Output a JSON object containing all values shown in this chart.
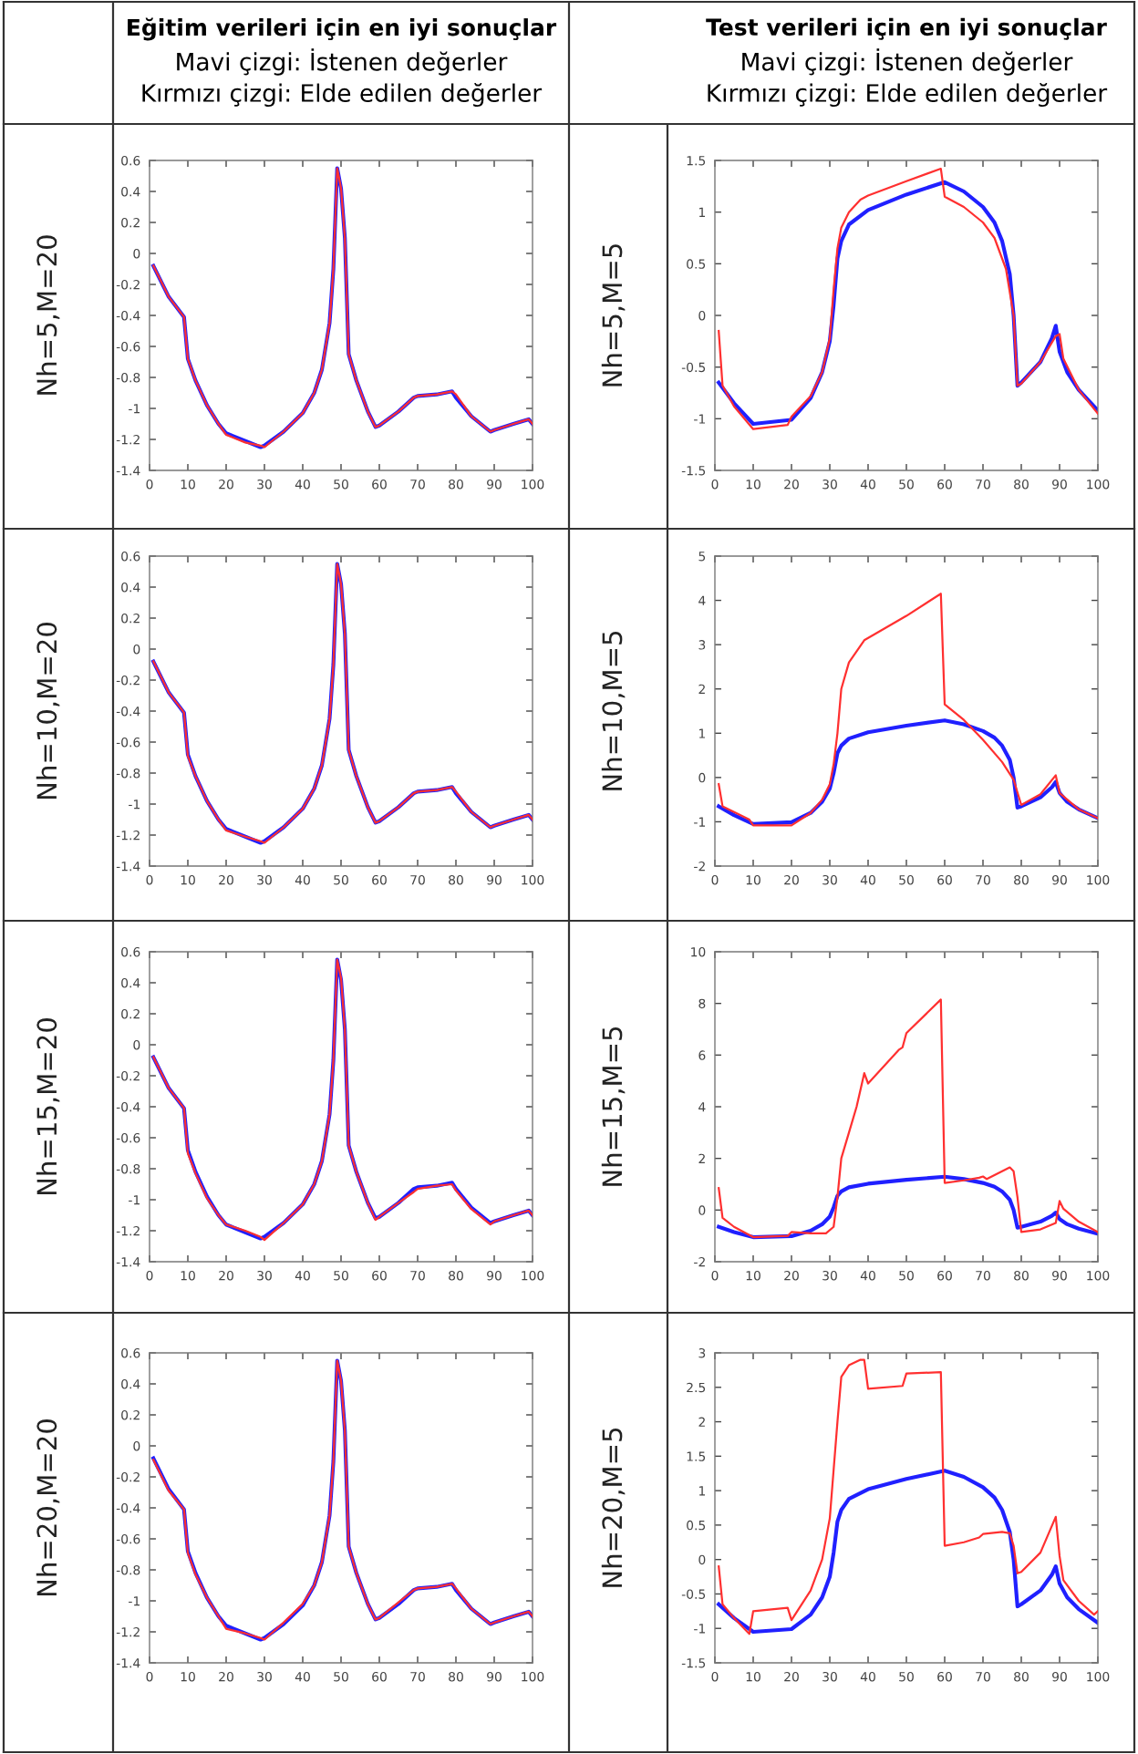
{
  "chart_data": [
    {
      "type": "line",
      "title": "Eğitim verileri için en iyi sonuçlar",
      "subtitle": "Mavi çizgi: İstenen değerler",
      "annotations": [
        "Kırmızı çizgi: Elde edilen değerler"
      ],
      "ylabel": "Nh=5,M=20",
      "xlim": [
        0,
        100
      ],
      "xticks": [
        0,
        10,
        20,
        30,
        40,
        50,
        60,
        70,
        80,
        90,
        100
      ],
      "ylim": [
        -1.4,
        0.6
      ],
      "yticks": [
        -1.4,
        -1.2,
        -1,
        -0.8,
        -0.6,
        -0.4,
        -0.2,
        0,
        0.2,
        0.4,
        0.6
      ],
      "series": [
        {
          "color": "#ff3030",
          "x": [
            1,
            5,
            9,
            10,
            12,
            15,
            18,
            20,
            25,
            29,
            30,
            35,
            40,
            43,
            45,
            47,
            48,
            49,
            50,
            51,
            52,
            54,
            57,
            59,
            60,
            65,
            69,
            70,
            75,
            79,
            80,
            84,
            89,
            90,
            95,
            99,
            100
          ],
          "values": [
            -0.08,
            -0.28,
            -0.41,
            -0.68,
            -0.82,
            -0.98,
            -1.1,
            -1.17,
            -1.22,
            -1.24,
            -1.25,
            -1.15,
            -1.03,
            -0.9,
            -0.75,
            -0.45,
            -0.1,
            0.55,
            0.42,
            0.1,
            -0.65,
            -0.82,
            -1.02,
            -1.12,
            -1.11,
            -1.02,
            -0.93,
            -0.92,
            -0.91,
            -0.89,
            -0.91,
            -1.05,
            -1.15,
            -1.14,
            -1.1,
            -1.07,
            -1.1
          ]
        },
        {
          "color": "#2020ff",
          "x": [
            1,
            5,
            9,
            10,
            12,
            15,
            18,
            20,
            25,
            29,
            30,
            35,
            40,
            43,
            45,
            47,
            48,
            49,
            50,
            51,
            52,
            54,
            57,
            59,
            60,
            65,
            69,
            70,
            75,
            79,
            80,
            84,
            89,
            90,
            95,
            99,
            100
          ],
          "values": [
            -0.08,
            -0.28,
            -0.41,
            -0.68,
            -0.82,
            -0.98,
            -1.1,
            -1.16,
            -1.21,
            -1.25,
            -1.24,
            -1.15,
            -1.03,
            -0.9,
            -0.75,
            -0.45,
            -0.1,
            0.55,
            0.42,
            0.1,
            -0.65,
            -0.82,
            -1.02,
            -1.12,
            -1.11,
            -1.02,
            -0.93,
            -0.92,
            -0.91,
            -0.89,
            -0.93,
            -1.05,
            -1.15,
            -1.14,
            -1.1,
            -1.07,
            -1.1
          ]
        }
      ]
    },
    {
      "type": "line",
      "title": "Test verileri için en iyi sonuçlar",
      "subtitle": "Mavi çizgi: İstenen değerler",
      "annotations": [
        "Kırmızı çizgi: Elde edilen değerler"
      ],
      "ylabel": "Nh=5,M=5",
      "xlim": [
        0,
        100
      ],
      "xticks": [
        0,
        10,
        20,
        30,
        40,
        50,
        60,
        70,
        80,
        90,
        100
      ],
      "ylim": [
        -1.5,
        1.5
      ],
      "yticks": [
        -1.5,
        -1,
        -0.5,
        0,
        0.5,
        1,
        1.5
      ],
      "series": [
        {
          "color": "#ff3030",
          "x": [
            1,
            2,
            5,
            10,
            19,
            20,
            25,
            28,
            30,
            31,
            32,
            33,
            35,
            38,
            40,
            50,
            59,
            60,
            65,
            70,
            73,
            76,
            78,
            79,
            80,
            85,
            89,
            90,
            91,
            95,
            100
          ],
          "values": [
            -0.15,
            -0.68,
            -0.88,
            -1.1,
            -1.06,
            -0.98,
            -0.78,
            -0.55,
            -0.22,
            0.25,
            0.65,
            0.85,
            1.0,
            1.12,
            1.16,
            1.3,
            1.42,
            1.15,
            1.05,
            0.9,
            0.75,
            0.45,
            0.0,
            -0.68,
            -0.66,
            -0.45,
            -0.2,
            -0.18,
            -0.42,
            -0.72,
            -0.95
          ]
        },
        {
          "color": "#2020ff",
          "x": [
            1,
            5,
            10,
            20,
            25,
            28,
            30,
            31,
            32,
            33,
            35,
            40,
            50,
            60,
            65,
            70,
            73,
            75,
            77,
            78,
            79,
            80,
            85,
            88,
            89,
            90,
            92,
            95,
            100
          ],
          "values": [
            -0.65,
            -0.85,
            -1.05,
            -1.01,
            -0.8,
            -0.55,
            -0.25,
            0.1,
            0.55,
            0.72,
            0.88,
            1.02,
            1.17,
            1.29,
            1.2,
            1.05,
            0.9,
            0.72,
            0.4,
            0.0,
            -0.68,
            -0.65,
            -0.45,
            -0.22,
            -0.1,
            -0.35,
            -0.55,
            -0.72,
            -0.92
          ]
        }
      ]
    },
    {
      "type": "line",
      "ylabel": "Nh=10,M=20",
      "xlim": [
        0,
        100
      ],
      "xticks": [
        0,
        10,
        20,
        30,
        40,
        50,
        60,
        70,
        80,
        90,
        100
      ],
      "ylim": [
        -1.4,
        0.6
      ],
      "yticks": [
        -1.4,
        -1.2,
        -1,
        -0.8,
        -0.6,
        -0.4,
        -0.2,
        0,
        0.2,
        0.4,
        0.6
      ],
      "series": [
        {
          "color": "#ff3030",
          "x": [
            1,
            5,
            9,
            10,
            12,
            15,
            18,
            20,
            25,
            29,
            30,
            35,
            40,
            43,
            45,
            47,
            48,
            49,
            50,
            51,
            52,
            54,
            57,
            59,
            60,
            65,
            69,
            70,
            75,
            79,
            80,
            84,
            89,
            90,
            95,
            99,
            100
          ],
          "values": [
            -0.08,
            -0.28,
            -0.41,
            -0.69,
            -0.82,
            -0.98,
            -1.1,
            -1.17,
            -1.21,
            -1.24,
            -1.25,
            -1.15,
            -1.03,
            -0.9,
            -0.75,
            -0.45,
            -0.1,
            0.55,
            0.42,
            0.1,
            -0.65,
            -0.82,
            -1.02,
            -1.12,
            -1.11,
            -1.02,
            -0.93,
            -0.92,
            -0.91,
            -0.89,
            -0.92,
            -1.05,
            -1.15,
            -1.14,
            -1.1,
            -1.07,
            -1.1
          ]
        },
        {
          "color": "#2020ff",
          "x": [
            1,
            5,
            9,
            10,
            12,
            15,
            18,
            20,
            25,
            29,
            30,
            35,
            40,
            43,
            45,
            47,
            48,
            49,
            50,
            51,
            52,
            54,
            57,
            59,
            60,
            65,
            69,
            70,
            75,
            79,
            80,
            84,
            89,
            90,
            95,
            99,
            100
          ],
          "values": [
            -0.08,
            -0.28,
            -0.41,
            -0.68,
            -0.82,
            -0.98,
            -1.1,
            -1.16,
            -1.21,
            -1.25,
            -1.24,
            -1.15,
            -1.03,
            -0.9,
            -0.75,
            -0.45,
            -0.1,
            0.55,
            0.42,
            0.1,
            -0.65,
            -0.82,
            -1.02,
            -1.12,
            -1.11,
            -1.02,
            -0.93,
            -0.92,
            -0.91,
            -0.89,
            -0.93,
            -1.05,
            -1.15,
            -1.14,
            -1.1,
            -1.07,
            -1.1
          ]
        }
      ]
    },
    {
      "type": "line",
      "ylabel": "Nh=10,M=5",
      "xlim": [
        0,
        100
      ],
      "xticks": [
        0,
        10,
        20,
        30,
        40,
        50,
        60,
        70,
        80,
        90,
        100
      ],
      "ylim": [
        -2,
        5
      ],
      "yticks": [
        -2,
        -1,
        0,
        1,
        2,
        3,
        4,
        5
      ],
      "series": [
        {
          "color": "#ff3030",
          "x": [
            1,
            2,
            9,
            10,
            20,
            25,
            28,
            30,
            31,
            32,
            33,
            35,
            39,
            50,
            59,
            60,
            65,
            70,
            75,
            78,
            80,
            85,
            89,
            90,
            95,
            100
          ],
          "values": [
            -0.15,
            -0.65,
            -0.95,
            -1.08,
            -1.08,
            -0.8,
            -0.5,
            -0.15,
            0.3,
            1.0,
            2.0,
            2.6,
            3.1,
            3.65,
            4.15,
            1.65,
            1.3,
            0.85,
            0.35,
            -0.05,
            -0.62,
            -0.38,
            0.05,
            -0.35,
            -0.72,
            -0.92
          ]
        },
        {
          "color": "#2020ff",
          "x": [
            1,
            5,
            10,
            20,
            25,
            28,
            30,
            31,
            32,
            33,
            35,
            40,
            50,
            60,
            65,
            70,
            73,
            75,
            77,
            78,
            79,
            80,
            85,
            88,
            89,
            90,
            92,
            95,
            100
          ],
          "values": [
            -0.65,
            -0.85,
            -1.05,
            -1.01,
            -0.8,
            -0.55,
            -0.25,
            0.1,
            0.55,
            0.72,
            0.88,
            1.02,
            1.17,
            1.29,
            1.2,
            1.05,
            0.9,
            0.72,
            0.4,
            0.0,
            -0.68,
            -0.65,
            -0.45,
            -0.22,
            -0.1,
            -0.35,
            -0.55,
            -0.72,
            -0.92
          ]
        }
      ]
    },
    {
      "type": "line",
      "ylabel": "Nh=15,M=20",
      "xlim": [
        0,
        100
      ],
      "xticks": [
        0,
        10,
        20,
        30,
        40,
        50,
        60,
        70,
        80,
        90,
        100
      ],
      "ylim": [
        -1.4,
        0.6
      ],
      "yticks": [
        -1.4,
        -1.2,
        -1,
        -0.8,
        -0.6,
        -0.4,
        -0.2,
        0,
        0.2,
        0.4,
        0.6
      ],
      "series": [
        {
          "color": "#ff3030",
          "x": [
            1,
            5,
            9,
            10,
            12,
            15,
            18,
            20,
            25,
            29,
            30,
            35,
            40,
            43,
            45,
            47,
            48,
            49,
            50,
            51,
            52,
            54,
            57,
            59,
            60,
            65,
            69,
            70,
            75,
            79,
            80,
            84,
            89,
            90,
            95,
            99,
            100
          ],
          "values": [
            -0.08,
            -0.28,
            -0.41,
            -0.7,
            -0.83,
            -0.99,
            -1.1,
            -1.16,
            -1.2,
            -1.24,
            -1.26,
            -1.15,
            -1.03,
            -0.9,
            -0.75,
            -0.45,
            -0.1,
            0.55,
            0.43,
            0.1,
            -0.65,
            -0.82,
            -1.02,
            -1.13,
            -1.11,
            -1.02,
            -0.95,
            -0.93,
            -0.91,
            -0.9,
            -0.94,
            -1.06,
            -1.16,
            -1.14,
            -1.1,
            -1.07,
            -1.1
          ]
        },
        {
          "color": "#2020ff",
          "x": [
            1,
            5,
            9,
            10,
            12,
            15,
            18,
            20,
            25,
            29,
            30,
            35,
            40,
            43,
            45,
            47,
            48,
            49,
            50,
            51,
            52,
            54,
            57,
            59,
            60,
            65,
            69,
            70,
            75,
            79,
            80,
            84,
            89,
            90,
            95,
            99,
            100
          ],
          "values": [
            -0.08,
            -0.28,
            -0.41,
            -0.68,
            -0.82,
            -0.98,
            -1.1,
            -1.16,
            -1.21,
            -1.25,
            -1.24,
            -1.15,
            -1.03,
            -0.9,
            -0.75,
            -0.45,
            -0.1,
            0.55,
            0.42,
            0.1,
            -0.65,
            -0.82,
            -1.02,
            -1.12,
            -1.11,
            -1.02,
            -0.93,
            -0.92,
            -0.91,
            -0.89,
            -0.93,
            -1.05,
            -1.15,
            -1.14,
            -1.1,
            -1.07,
            -1.1
          ]
        }
      ]
    },
    {
      "type": "line",
      "ylabel": "Nh=15,M=5",
      "xlim": [
        0,
        100
      ],
      "xticks": [
        0,
        10,
        20,
        30,
        40,
        50,
        60,
        70,
        80,
        90,
        100
      ],
      "ylim": [
        -2,
        10
      ],
      "yticks": [
        -2,
        0,
        2,
        4,
        6,
        8,
        10
      ],
      "series": [
        {
          "color": "#ff3030",
          "x": [
            1,
            2,
            5,
            10,
            19,
            20,
            25,
            29,
            31,
            32,
            33,
            35,
            37,
            39,
            40,
            48,
            49,
            50,
            59,
            60,
            65,
            69,
            70,
            71,
            75,
            77,
            78,
            79,
            80,
            85,
            89,
            90,
            91,
            95,
            100
          ],
          "values": [
            0.85,
            -0.3,
            -0.65,
            -1.05,
            -1.0,
            -0.85,
            -0.9,
            -0.9,
            -0.65,
            0.5,
            2.0,
            3.0,
            4.0,
            5.3,
            4.9,
            6.2,
            6.3,
            6.85,
            8.15,
            1.05,
            1.15,
            1.25,
            1.3,
            1.2,
            1.5,
            1.65,
            1.5,
            0.5,
            -0.85,
            -0.75,
            -0.5,
            0.35,
            0.05,
            -0.45,
            -0.85
          ]
        },
        {
          "color": "#2020ff",
          "x": [
            1,
            5,
            10,
            20,
            25,
            28,
            30,
            31,
            32,
            33,
            35,
            40,
            50,
            60,
            65,
            70,
            73,
            75,
            77,
            78,
            79,
            80,
            85,
            88,
            89,
            90,
            92,
            95,
            100
          ],
          "values": [
            -0.65,
            -0.85,
            -1.05,
            -1.01,
            -0.8,
            -0.55,
            -0.25,
            0.1,
            0.55,
            0.72,
            0.88,
            1.02,
            1.17,
            1.29,
            1.2,
            1.05,
            0.9,
            0.72,
            0.4,
            0.0,
            -0.68,
            -0.65,
            -0.45,
            -0.22,
            -0.1,
            -0.35,
            -0.55,
            -0.72,
            -0.92
          ]
        }
      ]
    },
    {
      "type": "line",
      "ylabel": "Nh=20,M=20",
      "xlim": [
        0,
        100
      ],
      "xticks": [
        0,
        10,
        20,
        30,
        40,
        50,
        60,
        70,
        80,
        90,
        100
      ],
      "ylim": [
        -1.4,
        0.6
      ],
      "yticks": [
        -1.4,
        -1.2,
        -1,
        -0.8,
        -0.6,
        -0.4,
        -0.2,
        0,
        0.2,
        0.4,
        0.6
      ],
      "series": [
        {
          "color": "#ff3030",
          "x": [
            1,
            5,
            9,
            10,
            12,
            15,
            18,
            20,
            25,
            29,
            30,
            35,
            40,
            43,
            45,
            47,
            48,
            49,
            50,
            51,
            52,
            54,
            57,
            59,
            60,
            65,
            69,
            70,
            75,
            79,
            80,
            84,
            89,
            90,
            95,
            99,
            100
          ],
          "values": [
            -0.09,
            -0.29,
            -0.41,
            -0.69,
            -0.83,
            -0.98,
            -1.1,
            -1.18,
            -1.21,
            -1.24,
            -1.25,
            -1.14,
            -1.02,
            -0.9,
            -0.75,
            -0.45,
            -0.1,
            0.55,
            0.42,
            0.1,
            -0.65,
            -0.82,
            -1.02,
            -1.12,
            -1.11,
            -1.01,
            -0.93,
            -0.92,
            -0.91,
            -0.89,
            -0.92,
            -1.05,
            -1.15,
            -1.14,
            -1.1,
            -1.07,
            -1.1
          ]
        },
        {
          "color": "#2020ff",
          "x": [
            1,
            5,
            9,
            10,
            12,
            15,
            18,
            20,
            25,
            29,
            30,
            35,
            40,
            43,
            45,
            47,
            48,
            49,
            50,
            51,
            52,
            54,
            57,
            59,
            60,
            65,
            69,
            70,
            75,
            79,
            80,
            84,
            89,
            90,
            95,
            99,
            100
          ],
          "values": [
            -0.08,
            -0.28,
            -0.41,
            -0.68,
            -0.82,
            -0.98,
            -1.1,
            -1.16,
            -1.21,
            -1.25,
            -1.24,
            -1.15,
            -1.03,
            -0.9,
            -0.75,
            -0.45,
            -0.1,
            0.55,
            0.42,
            0.1,
            -0.65,
            -0.82,
            -1.02,
            -1.12,
            -1.11,
            -1.02,
            -0.93,
            -0.92,
            -0.91,
            -0.89,
            -0.93,
            -1.05,
            -1.15,
            -1.14,
            -1.1,
            -1.07,
            -1.1
          ]
        }
      ]
    },
    {
      "type": "line",
      "ylabel": "Nh=20,M=5",
      "xlim": [
        0,
        100
      ],
      "xticks": [
        0,
        10,
        20,
        30,
        40,
        50,
        60,
        70,
        80,
        90,
        100
      ],
      "ylim": [
        -1.5,
        3
      ],
      "yticks": [
        -1.5,
        -1,
        -0.5,
        0,
        0.5,
        1,
        1.5,
        2,
        2.5,
        3
      ],
      "series": [
        {
          "color": "#ff3030",
          "x": [
            1,
            2,
            5,
            9,
            10,
            19,
            20,
            25,
            28,
            30,
            31,
            32,
            33,
            35,
            38,
            39,
            40,
            49,
            50,
            59,
            60,
            65,
            69,
            70,
            75,
            77,
            78,
            79,
            80,
            85,
            89,
            90,
            91,
            95,
            99,
            100
          ],
          "values": [
            -0.1,
            -0.65,
            -0.85,
            -1.08,
            -0.75,
            -0.7,
            -0.88,
            -0.45,
            0.0,
            0.6,
            1.3,
            2.0,
            2.65,
            2.82,
            2.9,
            2.9,
            2.48,
            2.52,
            2.7,
            2.72,
            0.2,
            0.25,
            0.32,
            0.37,
            0.4,
            0.38,
            0.2,
            -0.2,
            -0.18,
            0.1,
            0.62,
            0.05,
            -0.3,
            -0.6,
            -0.8,
            -0.75
          ]
        },
        {
          "color": "#2020ff",
          "x": [
            1,
            5,
            10,
            20,
            25,
            28,
            30,
            31,
            32,
            33,
            35,
            40,
            50,
            60,
            65,
            70,
            73,
            75,
            77,
            78,
            79,
            80,
            85,
            88,
            89,
            90,
            92,
            95,
            100
          ],
          "values": [
            -0.65,
            -0.85,
            -1.05,
            -1.01,
            -0.8,
            -0.55,
            -0.25,
            0.1,
            0.55,
            0.72,
            0.88,
            1.02,
            1.17,
            1.29,
            1.2,
            1.05,
            0.9,
            0.72,
            0.4,
            0.0,
            -0.68,
            -0.65,
            -0.45,
            -0.22,
            -0.1,
            -0.35,
            -0.55,
            -0.72,
            -0.92
          ]
        }
      ]
    }
  ]
}
